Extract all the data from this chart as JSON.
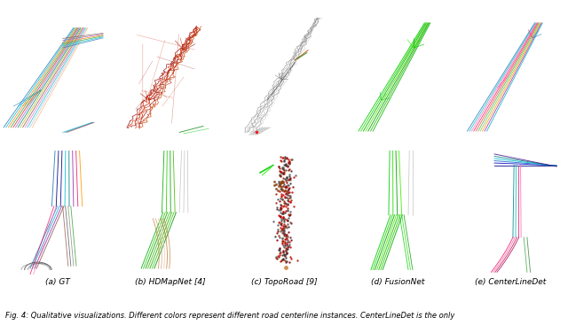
{
  "figure_width": 6.4,
  "figure_height": 3.67,
  "dpi": 100,
  "background_color": "#ffffff",
  "subcaptions": [
    "(a) GT",
    "(b) HDMapNet [4]",
    "(c) TopoRoad [9]",
    "(d) FusionNet",
    "(e) CenterLineDet"
  ],
  "caption": "Fig. 4: Qualitative visualizations. Different colors represent different road centerline instances. CenterLineDet is the only",
  "n_cols": 5,
  "n_rows": 2,
  "subcaption_fontsize": 6.5,
  "caption_fontsize": 6.0
}
